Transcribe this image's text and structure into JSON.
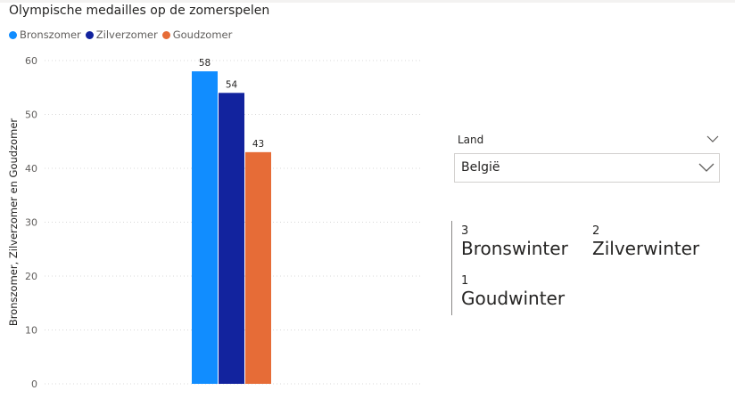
{
  "page": {
    "title": "Olympische medailles op de zomerspelen"
  },
  "legend": {
    "items": [
      {
        "name": "Bronszomer",
        "color": "#118DFF"
      },
      {
        "name": "Zilverzomer",
        "color": "#12239E"
      },
      {
        "name": "Goudzomer",
        "color": "#E66C37"
      }
    ]
  },
  "chart_data": {
    "type": "bar",
    "title": "Olympische medailles op de zomerspelen",
    "xlabel": "",
    "ylabel": "Bronszomer, Zilverzomer en Goudzomer",
    "ylim": [
      0,
      60
    ],
    "yticks": [
      0,
      10,
      20,
      30,
      40,
      50,
      60
    ],
    "categories": [
      ""
    ],
    "series": [
      {
        "name": "Bronszomer",
        "values": [
          58
        ],
        "color": "#118DFF"
      },
      {
        "name": "Zilverzomer",
        "values": [
          54
        ],
        "color": "#12239E"
      },
      {
        "name": "Goudzomer",
        "values": [
          43
        ],
        "color": "#E66C37"
      }
    ],
    "data_labels": true,
    "grid": true,
    "legend_position": "top-left"
  },
  "slicer": {
    "label": "Land",
    "selected": "België",
    "icons": {
      "header": "chevron-down-icon",
      "dropdown": "chevron-down-icon"
    }
  },
  "card": {
    "items": [
      {
        "value": "3",
        "label": "Bronswinter"
      },
      {
        "value": "2",
        "label": "Zilverwinter"
      },
      {
        "value": "1",
        "label": "Goudwinter"
      }
    ]
  }
}
